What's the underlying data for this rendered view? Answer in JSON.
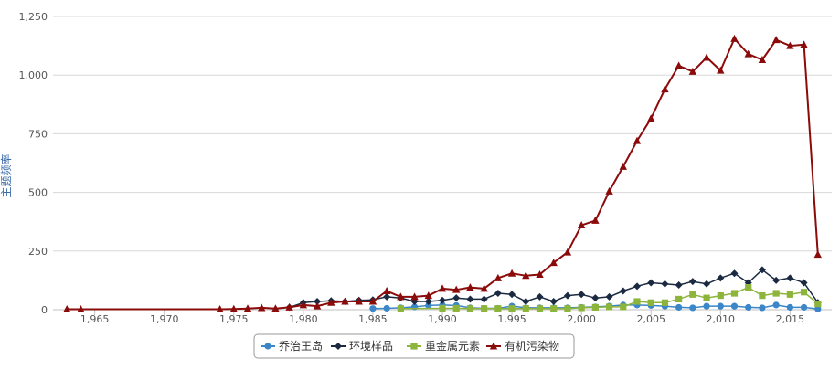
{
  "chart_data": {
    "type": "line",
    "title": "",
    "xlabel": "",
    "ylabel": "主题频率",
    "xlim": [
      1962,
      2018
    ],
    "ylim": [
      0,
      1250
    ],
    "x_ticks": [
      "1,965",
      "1,970",
      "1,975",
      "1,980",
      "1,985",
      "1,990",
      "1,995",
      "2,000",
      "2,005",
      "2,010",
      "2,015"
    ],
    "x_tick_values": [
      1965,
      1970,
      1975,
      1980,
      1985,
      1990,
      1995,
      2000,
      2005,
      2010,
      2015
    ],
    "y_ticks": [
      "0",
      "250",
      "500",
      "750",
      "1,000",
      "1,250"
    ],
    "y_tick_values": [
      0,
      250,
      500,
      750,
      1000,
      1250
    ],
    "grid": "horizontal",
    "legend_position": "bottom",
    "series": [
      {
        "name": "乔治王岛",
        "color": "#3a86c8",
        "marker": "circle",
        "points": [
          [
            1985,
            5
          ],
          [
            1986,
            6
          ],
          [
            1987,
            8
          ],
          [
            1988,
            12
          ],
          [
            1989,
            18
          ],
          [
            1990,
            20
          ],
          [
            1991,
            18
          ],
          [
            1992,
            8
          ],
          [
            1993,
            6
          ],
          [
            1994,
            6
          ],
          [
            1995,
            15
          ],
          [
            1996,
            8
          ],
          [
            1997,
            8
          ],
          [
            1998,
            8
          ],
          [
            1999,
            8
          ],
          [
            2000,
            10
          ],
          [
            2001,
            12
          ],
          [
            2002,
            15
          ],
          [
            2003,
            20
          ],
          [
            2004,
            20
          ],
          [
            2005,
            18
          ],
          [
            2006,
            15
          ],
          [
            2007,
            10
          ],
          [
            2008,
            8
          ],
          [
            2009,
            15
          ],
          [
            2010,
            15
          ],
          [
            2011,
            15
          ],
          [
            2012,
            10
          ],
          [
            2013,
            8
          ],
          [
            2014,
            20
          ],
          [
            2015,
            10
          ],
          [
            2016,
            10
          ],
          [
            2017,
            3
          ]
        ]
      },
      {
        "name": "环境样品",
        "color": "#1b2a41",
        "marker": "diamond",
        "points": [
          [
            1979,
            10
          ],
          [
            1980,
            30
          ],
          [
            1981,
            35
          ],
          [
            1982,
            38
          ],
          [
            1983,
            35
          ],
          [
            1984,
            40
          ],
          [
            1985,
            42
          ],
          [
            1986,
            55
          ],
          [
            1987,
            50
          ],
          [
            1988,
            35
          ],
          [
            1989,
            35
          ],
          [
            1990,
            40
          ],
          [
            1991,
            50
          ],
          [
            1992,
            45
          ],
          [
            1993,
            45
          ],
          [
            1994,
            70
          ],
          [
            1995,
            65
          ],
          [
            1996,
            35
          ],
          [
            1997,
            55
          ],
          [
            1998,
            35
          ],
          [
            1999,
            60
          ],
          [
            2000,
            65
          ],
          [
            2001,
            50
          ],
          [
            2002,
            55
          ],
          [
            2003,
            80
          ],
          [
            2004,
            100
          ],
          [
            2005,
            115
          ],
          [
            2006,
            110
          ],
          [
            2007,
            105
          ],
          [
            2008,
            120
          ],
          [
            2009,
            110
          ],
          [
            2010,
            135
          ],
          [
            2011,
            155
          ],
          [
            2012,
            115
          ],
          [
            2013,
            170
          ],
          [
            2014,
            125
          ],
          [
            2015,
            135
          ],
          [
            2016,
            115
          ],
          [
            2017,
            30
          ]
        ]
      },
      {
        "name": "重金属元素",
        "color": "#8db53c",
        "marker": "square",
        "points": [
          [
            1987,
            5
          ],
          [
            1990,
            6
          ],
          [
            1991,
            6
          ],
          [
            1992,
            5
          ],
          [
            1993,
            5
          ],
          [
            1994,
            5
          ],
          [
            1995,
            5
          ],
          [
            1996,
            5
          ],
          [
            1997,
            5
          ],
          [
            1998,
            5
          ],
          [
            1999,
            5
          ],
          [
            2000,
            8
          ],
          [
            2001,
            10
          ],
          [
            2002,
            12
          ],
          [
            2003,
            12
          ],
          [
            2004,
            35
          ],
          [
            2005,
            30
          ],
          [
            2006,
            30
          ],
          [
            2007,
            45
          ],
          [
            2008,
            65
          ],
          [
            2009,
            50
          ],
          [
            2010,
            60
          ],
          [
            2011,
            70
          ],
          [
            2012,
            95
          ],
          [
            2013,
            60
          ],
          [
            2014,
            70
          ],
          [
            2015,
            65
          ],
          [
            2016,
            75
          ],
          [
            2017,
            25
          ]
        ]
      },
      {
        "name": "有机污染物",
        "color": "#8b0a0a",
        "marker": "triangle",
        "points": [
          [
            1963,
            2
          ],
          [
            1964,
            2
          ],
          [
            1974,
            2
          ],
          [
            1975,
            3
          ],
          [
            1976,
            5
          ],
          [
            1977,
            8
          ],
          [
            1978,
            5
          ],
          [
            1979,
            10
          ],
          [
            1980,
            20
          ],
          [
            1981,
            15
          ],
          [
            1982,
            30
          ],
          [
            1983,
            35
          ],
          [
            1984,
            35
          ],
          [
            1985,
            35
          ],
          [
            1986,
            80
          ],
          [
            1987,
            55
          ],
          [
            1988,
            55
          ],
          [
            1989,
            60
          ],
          [
            1990,
            90
          ],
          [
            1991,
            85
          ],
          [
            1992,
            95
          ],
          [
            1993,
            90
          ],
          [
            1994,
            135
          ],
          [
            1995,
            155
          ],
          [
            1996,
            145
          ],
          [
            1997,
            150
          ],
          [
            1998,
            200
          ],
          [
            1999,
            245
          ],
          [
            2000,
            360
          ],
          [
            2001,
            380
          ],
          [
            2002,
            505
          ],
          [
            2003,
            610
          ],
          [
            2004,
            720
          ],
          [
            2005,
            815
          ],
          [
            2006,
            940
          ],
          [
            2007,
            1040
          ],
          [
            2008,
            1015
          ],
          [
            2009,
            1075
          ],
          [
            2010,
            1020
          ],
          [
            2011,
            1155
          ],
          [
            2012,
            1090
          ],
          [
            2013,
            1065
          ],
          [
            2014,
            1150
          ],
          [
            2015,
            1125
          ],
          [
            2016,
            1130
          ],
          [
            2017,
            235
          ]
        ]
      }
    ]
  }
}
